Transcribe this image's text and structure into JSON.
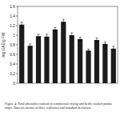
{
  "chart_data": {
    "type": "bar",
    "caption": "Figure 4: Total phenolics content in commercial frying and kettle cooked potato chips. Data are means of three replicates and standard deviation.",
    "y_label": "mg GAE/g FW",
    "categories": [
      null,
      null,
      null,
      null,
      null,
      null,
      null,
      null,
      null,
      null,
      null,
      null
    ],
    "values": [
      1.22,
      0.78,
      0.98,
      0.97,
      1.12,
      1.28,
      1.0,
      0.92,
      0.68,
      0.9,
      0.82,
      0.72
    ],
    "errors": [
      0.05,
      0.04,
      0.04,
      0.05,
      0.04,
      0.05,
      0.05,
      0.04,
      0.03,
      0.04,
      0.04,
      0.05
    ],
    "color": "#1c1c1c",
    "ylim": [
      0,
      1.6
    ],
    "yticks": [
      0,
      0.2,
      0.4,
      0.6,
      0.8,
      1,
      1.2,
      1.4,
      1.6
    ],
    "grid": false
  }
}
